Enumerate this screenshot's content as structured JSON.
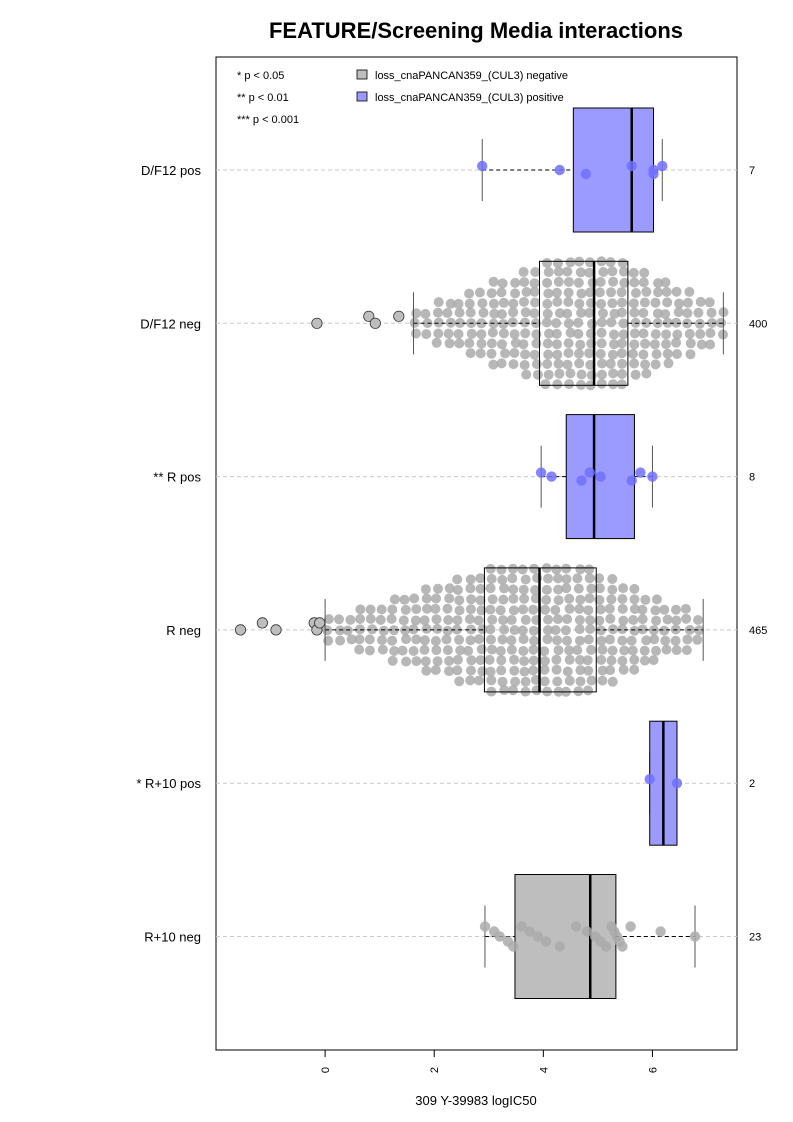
{
  "chart_data": {
    "type": "boxplot",
    "title": "FEATURE/Screening Media interactions",
    "xlabel": "309 Y-39983 logIC50",
    "xlim": [
      -2.0,
      7.55
    ],
    "x_ticks": [
      0,
      2,
      4,
      6
    ],
    "grid": "horizontal dashed lines through each category",
    "orientation": "horizontal",
    "significance_legend": [
      "* p < 0.05",
      "** p < 0.01",
      "*** p < 0.001"
    ],
    "legend": [
      {
        "label": "loss_cnaPANCAN359_(CUL3) negative",
        "color": "#bebebe"
      },
      {
        "label": "loss_cnaPANCAN359_(CUL3) positive",
        "color": "#9b9bff"
      }
    ],
    "categories": [
      {
        "label": "D/F12 pos",
        "n": "7",
        "group": "positive",
        "q1": 4.55,
        "median": 5.62,
        "q3": 6.02,
        "whisker_low": 2.88,
        "whisker_high": 6.18,
        "outliers": [],
        "points": [
          2.88,
          4.3,
          4.78,
          5.62,
          6.02,
          6.02,
          6.18
        ]
      },
      {
        "label": "D/F12 neg",
        "n": "400",
        "group": "negative",
        "q1": 3.93,
        "median": 4.93,
        "q3": 5.55,
        "whisker_low": 1.62,
        "whisker_high": 7.3,
        "outliers": [
          -0.15,
          0.8,
          0.92,
          1.35
        ],
        "points": []
      },
      {
        "label": "** R pos",
        "n": "8",
        "group": "positive",
        "q1": 4.42,
        "median": 4.93,
        "q3": 5.67,
        "whisker_low": 3.96,
        "whisker_high": 6.0,
        "outliers": [],
        "points": [
          3.96,
          4.15,
          4.7,
          4.85,
          5.05,
          5.62,
          5.78,
          6.0
        ]
      },
      {
        "label": "R neg",
        "n": "465",
        "group": "negative",
        "q1": 2.92,
        "median": 3.93,
        "q3": 4.97,
        "whisker_low": 0.0,
        "whisker_high": 6.93,
        "outliers": [
          -1.55,
          -1.15,
          -0.9,
          -0.2,
          -0.15,
          -0.1
        ],
        "points": []
      },
      {
        "label": "* R+10 pos",
        "n": "2",
        "group": "positive",
        "q1": 5.95,
        "median": 6.2,
        "q3": 6.45,
        "whisker_low": 5.95,
        "whisker_high": 6.45,
        "outliers": [],
        "points": [
          5.95,
          6.45
        ]
      },
      {
        "label": "R+10 neg",
        "n": "23",
        "group": "negative",
        "q1": 3.48,
        "median": 4.86,
        "q3": 5.33,
        "whisker_low": 2.93,
        "whisker_high": 6.78,
        "outliers": [],
        "points": [
          2.93,
          3.1,
          3.2,
          3.35,
          3.45,
          3.6,
          3.75,
          3.9,
          4.05,
          4.3,
          4.6,
          4.8,
          4.95,
          5.05,
          5.15,
          5.25,
          5.3,
          5.35,
          5.4,
          5.45,
          5.6,
          6.15,
          6.78
        ]
      }
    ]
  }
}
